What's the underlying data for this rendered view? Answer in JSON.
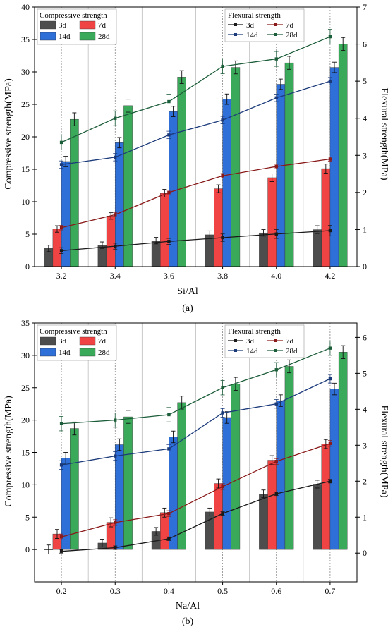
{
  "chart_data": [
    {
      "type": "bar",
      "caption": "(a)",
      "xlabel": "Si/Al",
      "ylabel": "Compressive strength(MPa)",
      "y2label": "Flexural strength(MPa)",
      "categories": [
        "3.2",
        "3.4",
        "3.6",
        "3.8",
        "4.0",
        "4.2"
      ],
      "ylim": [
        0,
        40
      ],
      "y2lim": [
        0,
        7
      ],
      "yticks": [
        "0",
        "5",
        "10",
        "15",
        "20",
        "25",
        "30",
        "35",
        "40"
      ],
      "y2ticks": [
        "0",
        "1",
        "2",
        "3",
        "4",
        "5",
        "6",
        "7"
      ],
      "bar_legend_title": "Compressive strength",
      "line_legend_title": "Flexural strength",
      "legend_position": "top",
      "series": [
        {
          "name": "3d",
          "color": "#4d4d4d",
          "values": [
            2.8,
            3.3,
            4.0,
            4.9,
            5.2,
            5.7
          ],
          "errors": [
            0.5,
            0.5,
            0.5,
            0.6,
            0.5,
            0.6
          ]
        },
        {
          "name": "7d",
          "color": "#f04444",
          "values": [
            5.8,
            7.8,
            11.3,
            12.0,
            13.7,
            15.1
          ],
          "errors": [
            0.5,
            0.5,
            0.6,
            0.6,
            0.6,
            0.7
          ]
        },
        {
          "name": "14d",
          "color": "#2e6fd8",
          "values": [
            16.2,
            19.1,
            23.9,
            25.8,
            28.1,
            30.7
          ],
          "errors": [
            0.8,
            0.8,
            0.8,
            0.8,
            0.8,
            0.8
          ]
        },
        {
          "name": "28d",
          "color": "#3aaa5a",
          "values": [
            22.7,
            24.8,
            29.2,
            30.7,
            31.4,
            34.3
          ],
          "errors": [
            1.0,
            1.0,
            1.0,
            1.0,
            1.0,
            1.0
          ]
        }
      ],
      "line_series": [
        {
          "name": "3d",
          "color": "#1a1a1a",
          "values": [
            0.43,
            0.55,
            0.68,
            0.78,
            0.88,
            0.97
          ],
          "errors": [
            0.08,
            0.08,
            0.08,
            0.1,
            0.12,
            0.14
          ]
        },
        {
          "name": "7d",
          "color": "#8a1a1a",
          "values": [
            1.05,
            1.4,
            2.0,
            2.45,
            2.7,
            2.9
          ],
          "errors": [
            0.06,
            0.06,
            0.06,
            0.06,
            0.06,
            0.06
          ]
        },
        {
          "name": "14d",
          "color": "#1b3a7a",
          "values": [
            2.75,
            2.95,
            3.55,
            3.95,
            4.55,
            5.0
          ],
          "errors": [
            0.1,
            0.1,
            0.1,
            0.1,
            0.1,
            0.1
          ]
        },
        {
          "name": "28d",
          "color": "#1d5e3a",
          "values": [
            3.35,
            4.0,
            4.45,
            5.4,
            5.6,
            6.2
          ],
          "errors": [
            0.2,
            0.2,
            0.2,
            0.2,
            0.2,
            0.2
          ]
        }
      ]
    },
    {
      "type": "bar",
      "caption": "(b)",
      "xlabel": "Na/Al",
      "ylabel": "Compressive strength(MPa)",
      "y2label": "Flexural strength(MPa)",
      "categories": [
        "0.2",
        "0.3",
        "0.4",
        "0.5",
        "0.6",
        "0.7"
      ],
      "ylim": [
        -5,
        35
      ],
      "y2lim": [
        -0.8,
        6.4
      ],
      "yticks": [
        "0",
        "5",
        "10",
        "15",
        "20",
        "25",
        "30",
        "35"
      ],
      "y2ticks": [
        "0",
        "1",
        "2",
        "3",
        "4",
        "5",
        "6"
      ],
      "bar_legend_title": "Compressive strength",
      "line_legend_title": "Flexural strength",
      "legend_position": "top",
      "series": [
        {
          "name": "3d",
          "color": "#4d4d4d",
          "values": [
            0.0,
            1.0,
            2.8,
            5.8,
            8.6,
            10.1
          ],
          "errors": [
            0.7,
            0.6,
            0.6,
            0.6,
            0.6,
            0.6
          ]
        },
        {
          "name": "7d",
          "color": "#f04444",
          "values": [
            2.4,
            4.2,
            5.7,
            10.2,
            13.8,
            16.3
          ],
          "errors": [
            0.7,
            0.7,
            0.7,
            0.7,
            0.7,
            0.7
          ]
        },
        {
          "name": "14d",
          "color": "#2e6fd8",
          "values": [
            14.1,
            16.2,
            17.4,
            20.4,
            23.0,
            24.8
          ],
          "errors": [
            0.9,
            0.9,
            0.9,
            0.9,
            0.9,
            0.9
          ]
        },
        {
          "name": "28d",
          "color": "#3aaa5a",
          "values": [
            18.7,
            20.5,
            22.7,
            25.6,
            28.3,
            30.5
          ],
          "errors": [
            1.0,
            1.0,
            1.0,
            1.0,
            1.0,
            1.0
          ]
        }
      ],
      "line_series": [
        {
          "name": "3d",
          "color": "#1a1a1a",
          "values": [
            0.05,
            0.15,
            0.4,
            1.1,
            1.65,
            2.0
          ],
          "errors": [
            0.05,
            0.05,
            0.05,
            0.05,
            0.05,
            0.05
          ]
        },
        {
          "name": "7d",
          "color": "#8a1a1a",
          "values": [
            0.45,
            0.85,
            1.1,
            1.85,
            2.55,
            3.05
          ],
          "errors": [
            0.08,
            0.08,
            0.08,
            0.08,
            0.08,
            0.08
          ]
        },
        {
          "name": "14d",
          "color": "#1b3a7a",
          "values": [
            2.45,
            2.7,
            2.9,
            3.9,
            4.15,
            4.85
          ],
          "errors": [
            0.12,
            0.12,
            0.12,
            0.12,
            0.12,
            0.12
          ]
        },
        {
          "name": "28d",
          "color": "#1d5e3a",
          "values": [
            3.6,
            3.7,
            3.85,
            4.6,
            5.1,
            5.7
          ],
          "errors": [
            0.2,
            0.2,
            0.2,
            0.2,
            0.2,
            0.2
          ]
        }
      ]
    }
  ]
}
